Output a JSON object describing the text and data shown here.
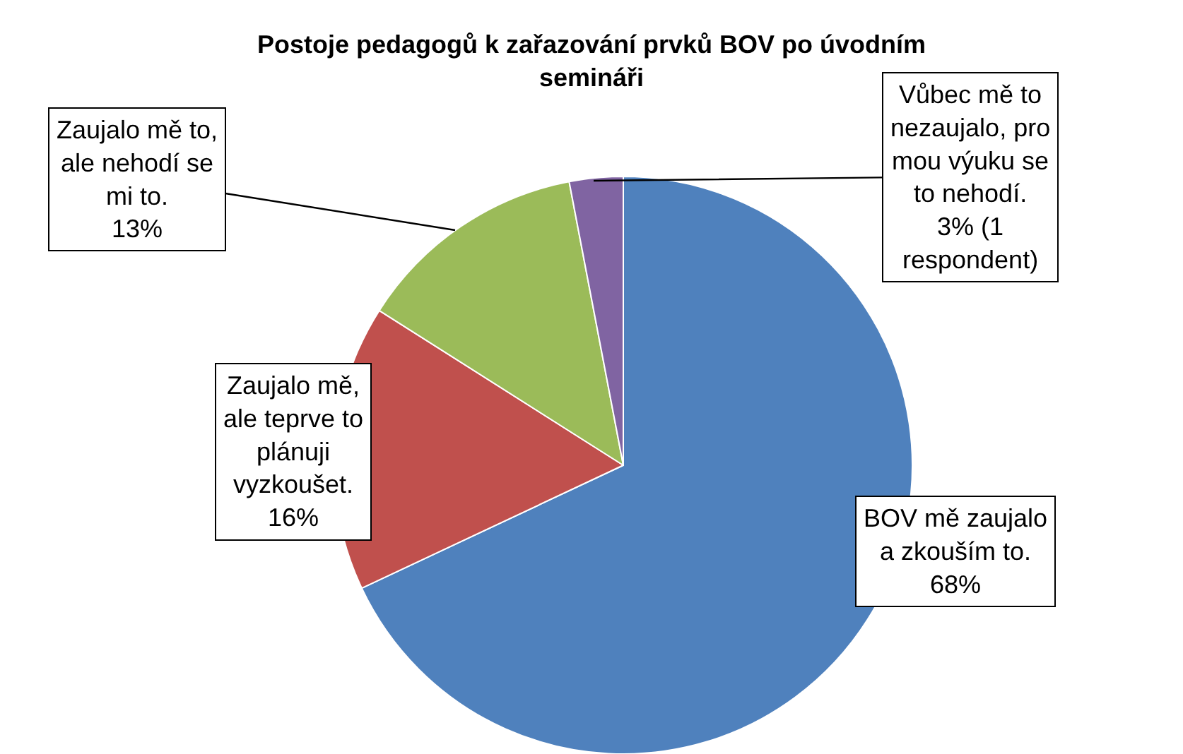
{
  "chart_data": {
    "type": "pie",
    "title": "Postoje pedagogů k zařazování prvků BOV po úvodním semináři",
    "categories": [
      "BOV mě zaujalo a zkouším to.",
      "Zaujalo mě, ale teprve to plánuji vyzkoušet.",
      "Zaujalo mě to, ale nehodí se mi to.",
      "Vůbec mě to nezaujalo, pro mou výuku se to nehodí."
    ],
    "values": [
      68,
      16,
      13,
      3
    ],
    "value_labels": [
      "68%",
      "16%",
      "13%",
      "3% (1 respondent)"
    ],
    "colors": [
      "#4f81bd",
      "#c0504d",
      "#9bbb59",
      "#8064a2"
    ],
    "legend": false
  }
}
